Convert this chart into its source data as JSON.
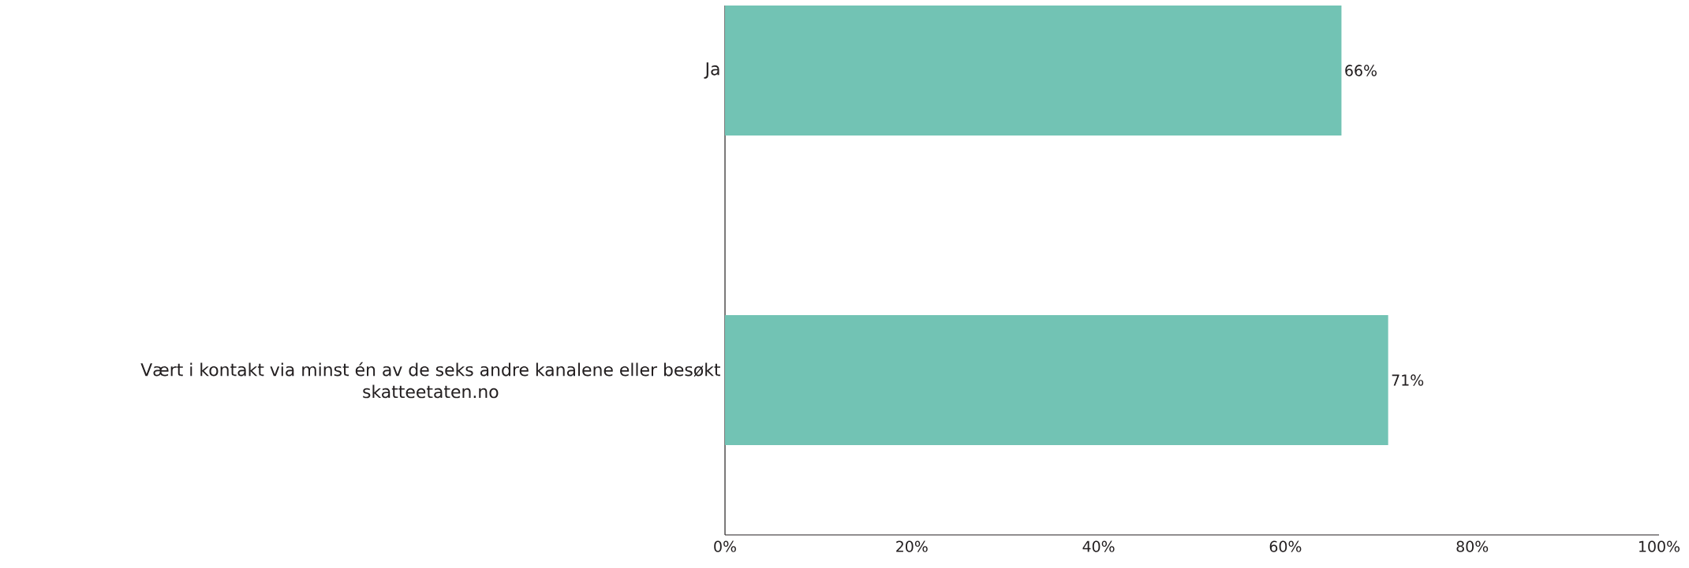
{
  "chart_data": {
    "type": "bar",
    "orientation": "horizontal",
    "categories": [
      "Ja",
      "Vært i kontakt via minst én av de seks andre kanalene eller besøkt skatteetaten.no"
    ],
    "values": [
      66,
      71
    ],
    "color": "#72c3b4",
    "value_labels": [
      "66%",
      "71%"
    ],
    "xlim": [
      0,
      100
    ],
    "xticks": [
      {
        "value": 0,
        "label": "0%"
      },
      {
        "value": 20,
        "label": "20%"
      },
      {
        "value": 40,
        "label": "40%"
      },
      {
        "value": 60,
        "label": "60%"
      },
      {
        "value": 80,
        "label": "80%"
      },
      {
        "value": 100,
        "label": "100%"
      }
    ]
  }
}
